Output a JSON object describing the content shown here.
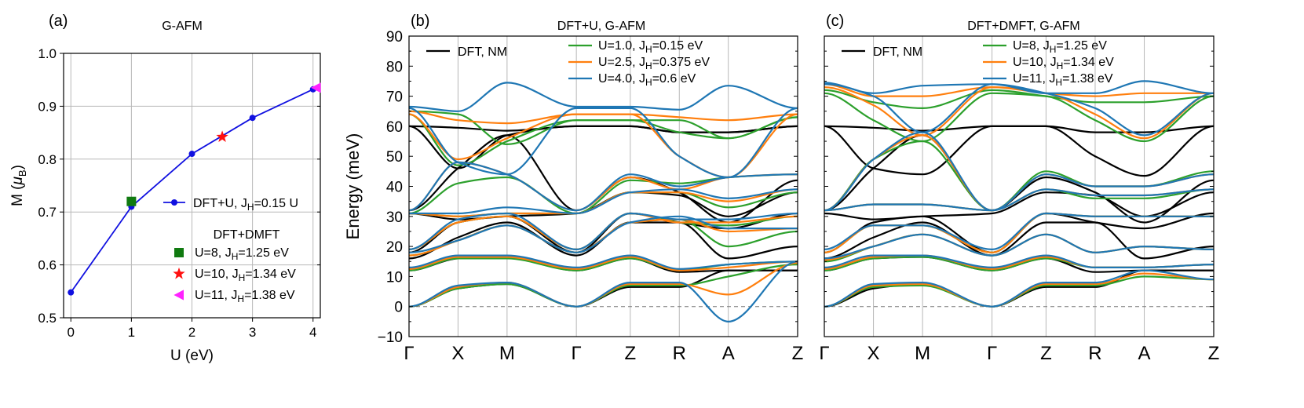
{
  "chart_data": [
    {
      "type": "line",
      "panel_label": "(a)",
      "title": "G-AFM",
      "xlabel": "U (eV)",
      "ylabel_main": "M (",
      "ylabel_mu": "μ",
      "ylabel_sub": "B",
      "ylabel_close": ")",
      "xlim": [
        -0.12,
        4.12
      ],
      "ylim": [
        0.5,
        1.0
      ],
      "xticks": [
        0,
        1,
        2,
        3,
        4
      ],
      "xtick_labels": [
        "0",
        "1",
        "2",
        "3",
        "4"
      ],
      "yticks": [
        0.5,
        0.6,
        0.7,
        0.8,
        0.9,
        1.0
      ],
      "ytick_labels": [
        "0.5",
        "0.6",
        "0.7",
        "0.8",
        "0.9",
        "1.0"
      ],
      "grid": true,
      "line_series": {
        "legend_main": "DFT+U, J",
        "legend_sub": "H",
        "legend_tail": "=0.15 U",
        "color": "#1010e0",
        "x": [
          0,
          1,
          2,
          3,
          4
        ],
        "y": [
          0.548,
          0.71,
          0.81,
          0.878,
          0.932
        ]
      },
      "dmft_header": "DFT+DMFT",
      "dmft_points": [
        {
          "marker": "square",
          "color": "#107a10",
          "x": 1.0,
          "y": 0.72,
          "label_main": "U=8,   J",
          "label_sub": "H",
          "label_tail": "=1.25 eV"
        },
        {
          "marker": "star",
          "color": "#ff1010",
          "x": 2.5,
          "y": 0.842,
          "label_main": "U=10, J",
          "label_sub": "H",
          "label_tail": "=1.34 eV"
        },
        {
          "marker": "triangle-left",
          "color": "#ff22ff",
          "x": 4.05,
          "y": 0.935,
          "label_main": "U=11, J",
          "label_sub": "H",
          "label_tail": "=1.38 eV"
        }
      ]
    },
    {
      "type": "line",
      "panel_label": "(b)",
      "title": "DFT+U,  G-AFM",
      "ylabel": "Energy (meV)",
      "ylim": [
        -10,
        90
      ],
      "yticks": [
        -10,
        0,
        10,
        20,
        30,
        40,
        50,
        60,
        70,
        80,
        90
      ],
      "ytick_labels": [
        "−10",
        "0",
        "10",
        "20",
        "30",
        "40",
        "50",
        "60",
        "70",
        "80",
        "90"
      ],
      "kpath": [
        "Γ",
        "X",
        "M",
        "Γ",
        "Z",
        "R",
        "A",
        "Z"
      ],
      "grid_x": true,
      "zero_line": true,
      "legend": [
        {
          "name": "DFT, NM",
          "color": "#000000"
        },
        {
          "name_main": "U=1.0, J",
          "name_sub": "H",
          "name_tail": "=0.15 eV",
          "color": "#2ca02c"
        },
        {
          "name_main": "U=2.5, J",
          "name_sub": "H",
          "name_tail": "=0.375 eV",
          "color": "#ff7f0e"
        },
        {
          "name_main": "U=4.0, J",
          "name_sub": "H",
          "name_tail": "=0.6 eV",
          "color": "#1f77b4"
        }
      ],
      "series": [
        {
          "name": "DFT, NM",
          "color": "#000000",
          "bands": [
            [
              0,
              6,
              7.5,
              0,
              6.5,
              6.5,
              12,
              12
            ],
            [
              12,
              16,
              16.5,
              12,
              16,
              11.5,
              12,
              12
            ],
            [
              16,
              23,
              28,
              17,
              28,
              28,
              16,
              20
            ],
            [
              18,
              28,
              30,
              18,
              31,
              28,
              26,
              31
            ],
            [
              31,
              29,
              30,
              31,
              38,
              37,
              30,
              38
            ],
            [
              32,
              46,
              57,
              32,
              43,
              38,
              28,
              42
            ],
            [
              60,
              46,
              57,
              60,
              60,
              58,
              58,
              60
            ],
            [
              60,
              59.5,
              58.5,
              60,
              60,
              58,
              58,
              60
            ]
          ]
        },
        {
          "name": "U=1.0, J_H=0.15 eV",
          "color": "#2ca02c",
          "bands": [
            [
              0,
              6,
              7.5,
              0,
              7,
              7,
              10,
              14
            ],
            [
              12,
              16,
              16,
              12,
              16,
              12,
              14,
              15
            ],
            [
              17,
              22,
              27,
              18,
              28,
              29,
              20,
              25
            ],
            [
              19,
              28,
              30,
              19,
              31,
              28,
              27,
              30
            ],
            [
              31,
              30,
              31,
              31,
              38,
              38,
              33,
              38
            ],
            [
              31,
              41,
              43,
              31,
              42,
              41,
              43,
              44
            ],
            [
              64,
              47,
              55,
              62,
              62,
              58,
              56,
              63
            ],
            [
              65,
              64,
              54,
              62,
              62,
              62,
              56,
              63
            ]
          ]
        },
        {
          "name": "U=2.5, J_H=0.375 eV",
          "color": "#ff7f0e",
          "bands": [
            [
              0,
              6.5,
              8,
              0,
              7.5,
              7.5,
              4,
              14.5
            ],
            [
              12.5,
              16.5,
              16.5,
              12.5,
              16.5,
              12,
              13,
              15
            ],
            [
              17,
              22,
              27,
              18,
              28,
              29,
              25,
              26
            ],
            [
              19,
              28,
              30,
              19,
              31,
              28,
              28,
              30
            ],
            [
              31,
              30,
              31,
              31,
              38,
              38,
              35,
              39
            ],
            [
              32,
              48,
              44,
              32,
              43,
              39,
              43,
              44
            ],
            [
              64,
              49,
              56,
              64,
              64,
              50,
              43,
              64
            ],
            [
              65,
              62,
              61,
              64,
              64,
              63,
              62,
              64
            ]
          ]
        },
        {
          "name": "U=4.0, J_H=0.6 eV",
          "color": "#1f77b4",
          "bands": [
            [
              0,
              7,
              8,
              0,
              8,
              8,
              -5,
              15
            ],
            [
              13,
              17,
              17,
              13,
              17,
              12.5,
              14,
              15
            ],
            [
              18,
              22,
              27,
              18,
              28,
              30,
              26,
              26
            ],
            [
              19,
              29,
              31,
              19,
              31,
              29,
              29,
              31
            ],
            [
              31,
              31,
              33,
              31,
              38,
              39,
              36,
              39
            ],
            [
              32,
              48,
              44,
              32,
              44,
              40,
              43,
              44
            ],
            [
              66,
              48,
              44,
              66,
              66,
              50,
              43,
              66
            ],
            [
              66.5,
              65,
              74.5,
              66.5,
              66.5,
              65.5,
              73.5,
              66
            ]
          ]
        }
      ]
    },
    {
      "type": "line",
      "panel_label": "(c)",
      "title": "DFT+DMFT,  G-AFM",
      "ylim": [
        -10,
        90
      ],
      "yticks": [
        -10,
        0,
        10,
        20,
        30,
        40,
        50,
        60,
        70,
        80,
        90
      ],
      "kpath": [
        "Γ",
        "X",
        "M",
        "Γ",
        "Z",
        "R",
        "A",
        "Z"
      ],
      "grid_x": true,
      "zero_line": true,
      "legend": [
        {
          "name": "DFT, NM",
          "color": "#000000"
        },
        {
          "name_main": "U=8,   J",
          "name_sub": "H",
          "name_tail": "=1.25 eV",
          "color": "#2ca02c"
        },
        {
          "name_main": "U=10, J",
          "name_sub": "H",
          "name_tail": "=1.34 eV",
          "color": "#ff7f0e"
        },
        {
          "name_main": "U=11, J",
          "name_sub": "H",
          "name_tail": "=1.38 eV",
          "color": "#1f77b4"
        }
      ],
      "series": [
        {
          "name": "DFT, NM",
          "color": "#000000",
          "bands": [
            [
              0,
              6,
              7.5,
              0,
              6.5,
              6.5,
              12,
              12
            ],
            [
              12,
              16,
              16.5,
              12,
              16,
              11.5,
              12,
              12
            ],
            [
              16,
              23,
              28,
              17,
              28,
              28,
              16,
              20
            ],
            [
              18,
              28,
              30,
              18,
              31,
              28,
              26,
              31
            ],
            [
              31,
              29,
              30,
              31,
              38,
              37,
              30,
              38
            ],
            [
              32,
              46,
              57,
              32,
              43,
              38,
              28,
              42
            ],
            [
              60,
              46,
              44,
              60,
              60,
              50,
              43.5,
              60
            ],
            [
              60,
              59.5,
              58.5,
              60,
              60,
              58,
              58,
              60
            ]
          ]
        },
        {
          "name": "U=8, J_H=1.25 eV",
          "color": "#2ca02c",
          "bands": [
            [
              0,
              6.5,
              7,
              0,
              7,
              7,
              10,
              9
            ],
            [
              12,
              16,
              16.5,
              12,
              16,
              13,
              13,
              14
            ],
            [
              15,
              20,
              24,
              17,
              24,
              18,
              20,
              19
            ],
            [
              18,
              27,
              27,
              18,
              31,
              30,
              30,
              30
            ],
            [
              32,
              34,
              34,
              32,
              39,
              36,
              36,
              39
            ],
            [
              32,
              49,
              55,
              32,
              45,
              40,
              40,
              45
            ],
            [
              71,
              62,
              55,
              71,
              70,
              62,
              55,
              70
            ],
            [
              72,
              68,
              66,
              72,
              70,
              68,
              68,
              70
            ]
          ]
        },
        {
          "name": "U=10, J_H=1.34 eV",
          "color": "#ff7f0e",
          "bands": [
            [
              0,
              7,
              7.5,
              0,
              7.5,
              7.5,
              11,
              9
            ],
            [
              12.5,
              16.5,
              17,
              12.5,
              16.5,
              13,
              13,
              14
            ],
            [
              15.5,
              20,
              24,
              17,
              24,
              18,
              20,
              19
            ],
            [
              18,
              27,
              27,
              18,
              31,
              30,
              30,
              30
            ],
            [
              32,
              34,
              34,
              32,
              39,
              37,
              37,
              39
            ],
            [
              32,
              49,
              57,
              32,
              44,
              40,
              40,
              44
            ],
            [
              73,
              67,
              57,
              73,
              71,
              64,
              56,
              71
            ],
            [
              74,
              70,
              70,
              73,
              71,
              70,
              71,
              71
            ]
          ]
        },
        {
          "name": "U=11, J_H=1.38 eV",
          "color": "#1f77b4",
          "bands": [
            [
              0,
              7.5,
              8,
              0,
              8,
              8,
              12,
              9
            ],
            [
              13,
              17,
              17,
              13,
              17,
              13,
              13,
              14
            ],
            [
              16,
              20,
              24,
              17,
              24,
              18,
              20,
              19
            ],
            [
              19,
              27,
              27,
              19,
              31,
              30,
              30,
              30
            ],
            [
              32,
              34,
              34,
              32,
              39,
              37,
              37,
              39
            ],
            [
              32,
              49,
              58,
              32,
              44,
              40,
              40,
              44
            ],
            [
              74,
              70,
              58,
              74,
              71,
              66,
              57,
              71
            ],
            [
              74.5,
              71,
              73.5,
              74,
              71,
              71,
              75,
              71
            ]
          ]
        }
      ]
    }
  ]
}
